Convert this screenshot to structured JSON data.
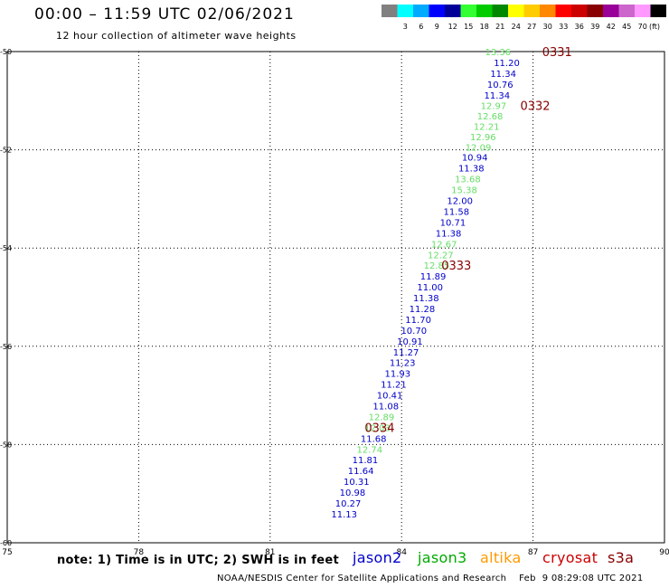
{
  "header": {
    "title": "00:00 – 11:59 UTC 02/06/2021",
    "subtitle": "12 hour collection of altimeter wave heights"
  },
  "legend": {
    "units": "(ft)",
    "swatches": [
      {
        "color": "#808080",
        "label": ""
      },
      {
        "color": "#00ffff",
        "label": "3"
      },
      {
        "color": "#00aaff",
        "label": "6"
      },
      {
        "color": "#0000ff",
        "label": "9"
      },
      {
        "color": "#000099",
        "label": "12"
      },
      {
        "color": "#33ff33",
        "label": "15"
      },
      {
        "color": "#00cc00",
        "label": "18"
      },
      {
        "color": "#008800",
        "label": "21"
      },
      {
        "color": "#ffff00",
        "label": "24"
      },
      {
        "color": "#ffcc00",
        "label": "27"
      },
      {
        "color": "#ff8800",
        "label": "30"
      },
      {
        "color": "#ff0000",
        "label": "33"
      },
      {
        "color": "#cc0000",
        "label": "36"
      },
      {
        "color": "#880000",
        "label": "39"
      },
      {
        "color": "#990099",
        "label": "42"
      },
      {
        "color": "#cc66cc",
        "label": "45"
      },
      {
        "color": "#ff99ff",
        "label": "70"
      },
      {
        "color": "#000000",
        "label": ""
      }
    ]
  },
  "footer": {
    "note": "note: 1) Time is in UTC; 2) SWH is in feet",
    "credit": "NOAA/NESDIS Center for Satellite Applications and Research    Feb  9 08:29:08 UTC 2021",
    "satellites": [
      {
        "name": "jason2",
        "color": "#0000cc"
      },
      {
        "name": "jason3",
        "color": "#00aa00"
      },
      {
        "name": "altika",
        "color": "#ff9900"
      },
      {
        "name": "cryosat",
        "color": "#cc0000"
      },
      {
        "name": "s3a",
        "color": "#880000"
      }
    ]
  },
  "chart_data": {
    "type": "scatter",
    "title": "",
    "xlabel": "",
    "ylabel": "",
    "xlim": [
      75,
      90
    ],
    "ylim": [
      -60,
      -50
    ],
    "grid": true,
    "xticks": [
      "75",
      "78",
      "81",
      "84",
      "87",
      "90"
    ],
    "yticks": [
      "-50",
      "-52",
      "-54",
      "-56",
      "-58",
      "-60"
    ],
    "colors": {
      "blue": "#0000cc",
      "green": "#66dd66",
      "time": "#880000"
    },
    "points": [
      {
        "x": 86.2,
        "y": -50.0,
        "label": "13.36",
        "c": "green"
      },
      {
        "x": 86.4,
        "y": -50.22,
        "label": "11.20",
        "c": "blue"
      },
      {
        "x": 86.32,
        "y": -50.44,
        "label": "11.34",
        "c": "blue"
      },
      {
        "x": 86.25,
        "y": -50.66,
        "label": "10.76",
        "c": "blue"
      },
      {
        "x": 86.18,
        "y": -50.88,
        "label": "11.34",
        "c": "blue"
      },
      {
        "x": 86.1,
        "y": -51.1,
        "label": "12.97",
        "c": "green"
      },
      {
        "x": 86.02,
        "y": -51.31,
        "label": "12.68",
        "c": "green"
      },
      {
        "x": 85.94,
        "y": -51.52,
        "label": "12.21",
        "c": "green"
      },
      {
        "x": 85.86,
        "y": -51.73,
        "label": "12.96",
        "c": "green"
      },
      {
        "x": 85.75,
        "y": -51.94,
        "label": "12.09",
        "c": "green"
      },
      {
        "x": 85.67,
        "y": -52.15,
        "label": "10.94",
        "c": "blue"
      },
      {
        "x": 85.59,
        "y": -52.37,
        "label": "11.38",
        "c": "blue"
      },
      {
        "x": 85.51,
        "y": -52.59,
        "label": "13.68",
        "c": "green"
      },
      {
        "x": 85.43,
        "y": -52.81,
        "label": "15.38",
        "c": "green"
      },
      {
        "x": 85.33,
        "y": -53.03,
        "label": "12.00",
        "c": "blue"
      },
      {
        "x": 85.25,
        "y": -53.25,
        "label": "11.58",
        "c": "blue"
      },
      {
        "x": 85.17,
        "y": -53.47,
        "label": "10.71",
        "c": "blue"
      },
      {
        "x": 85.07,
        "y": -53.69,
        "label": "11.38",
        "c": "blue"
      },
      {
        "x": 84.97,
        "y": -53.91,
        "label": "12.67",
        "c": "green"
      },
      {
        "x": 84.89,
        "y": -54.13,
        "label": "12.27",
        "c": "green"
      },
      {
        "x": 84.8,
        "y": -54.35,
        "label": "12.85",
        "c": "green"
      },
      {
        "x": 84.72,
        "y": -54.57,
        "label": "11.89",
        "c": "blue"
      },
      {
        "x": 84.65,
        "y": -54.79,
        "label": "11.00",
        "c": "blue"
      },
      {
        "x": 84.56,
        "y": -55.01,
        "label": "11.38",
        "c": "blue"
      },
      {
        "x": 84.47,
        "y": -55.23,
        "label": "11.28",
        "c": "blue"
      },
      {
        "x": 84.38,
        "y": -55.45,
        "label": "11.70",
        "c": "blue"
      },
      {
        "x": 84.28,
        "y": -55.67,
        "label": "10.70",
        "c": "blue"
      },
      {
        "x": 84.19,
        "y": -55.89,
        "label": "10.91",
        "c": "blue"
      },
      {
        "x": 84.1,
        "y": -56.11,
        "label": "11.27",
        "c": "blue"
      },
      {
        "x": 84.02,
        "y": -56.33,
        "label": "11.23",
        "c": "blue"
      },
      {
        "x": 83.91,
        "y": -56.55,
        "label": "11.93",
        "c": "blue"
      },
      {
        "x": 83.82,
        "y": -56.77,
        "label": "11.21",
        "c": "blue"
      },
      {
        "x": 83.73,
        "y": -56.99,
        "label": "10.41",
        "c": "blue"
      },
      {
        "x": 83.64,
        "y": -57.21,
        "label": "11.08",
        "c": "blue"
      },
      {
        "x": 83.54,
        "y": -57.43,
        "label": "12.89",
        "c": "green"
      },
      {
        "x": 83.45,
        "y": -57.65,
        "label": "12.03",
        "c": "green"
      },
      {
        "x": 83.36,
        "y": -57.87,
        "label": "11.68",
        "c": "blue"
      },
      {
        "x": 83.27,
        "y": -58.09,
        "label": "12.74",
        "c": "green"
      },
      {
        "x": 83.17,
        "y": -58.31,
        "label": "11.81",
        "c": "blue"
      },
      {
        "x": 83.07,
        "y": -58.53,
        "label": "11.64",
        "c": "blue"
      },
      {
        "x": 82.97,
        "y": -58.75,
        "label": "10.31",
        "c": "blue"
      },
      {
        "x": 82.88,
        "y": -58.97,
        "label": "10.98",
        "c": "blue"
      },
      {
        "x": 82.78,
        "y": -59.19,
        "label": "10.27",
        "c": "blue"
      },
      {
        "x": 82.69,
        "y": -59.41,
        "label": "11.13",
        "c": "blue"
      }
    ],
    "times": [
      {
        "x": 87.55,
        "y": -50.0,
        "label": "0331"
      },
      {
        "x": 87.05,
        "y": -51.1,
        "label": "0332"
      },
      {
        "x": 85.25,
        "y": -54.35,
        "label": "0333"
      },
      {
        "x": 83.5,
        "y": -57.65,
        "label": "0334"
      }
    ]
  }
}
